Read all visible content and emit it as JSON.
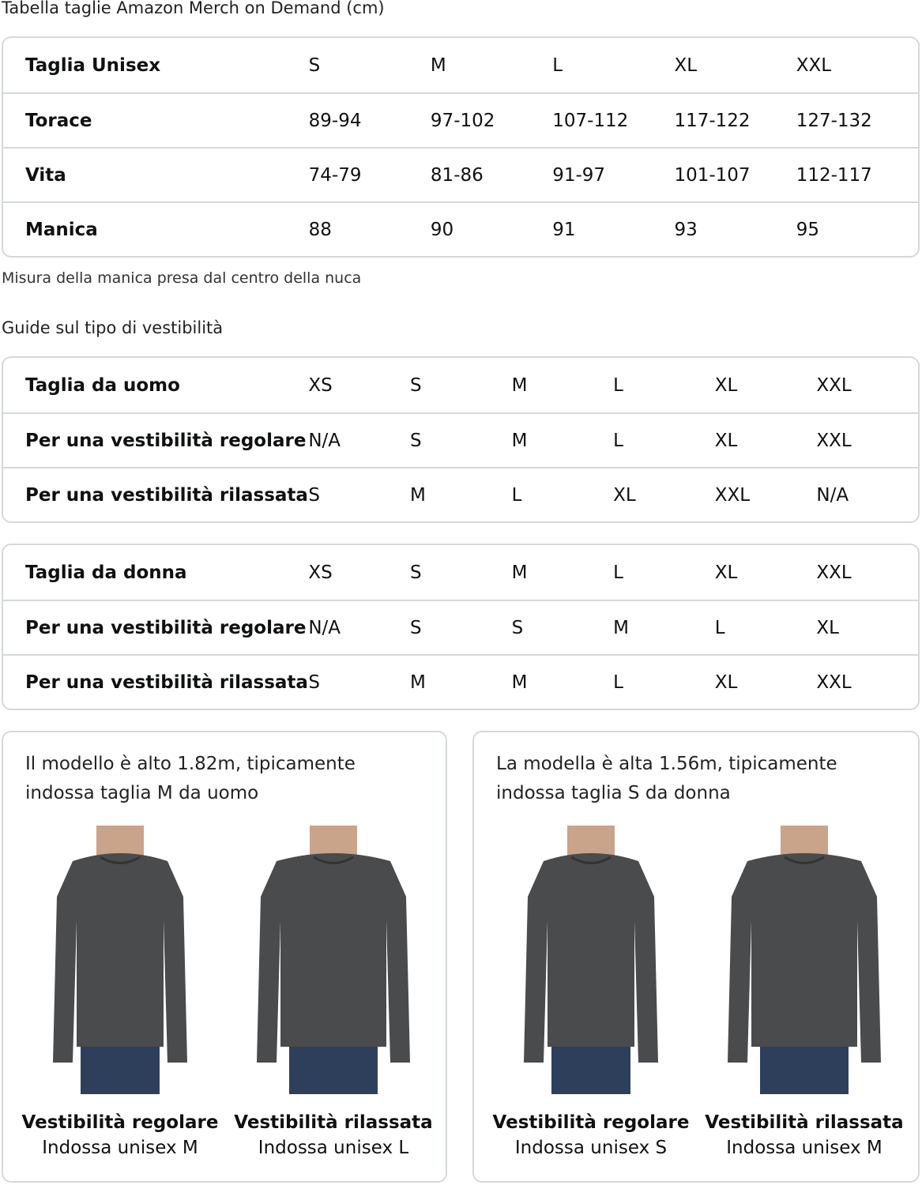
{
  "title": "Tabella taglie Amazon Merch on Demand (cm)",
  "unisex_table": {
    "rows": [
      {
        "label": "Taglia Unisex",
        "values": [
          "S",
          "M",
          "L",
          "XL",
          "XXL"
        ]
      },
      {
        "label": "Torace",
        "values": [
          "89-94",
          "97-102",
          "107-112",
          "117-122",
          "127-132"
        ]
      },
      {
        "label": "Vita",
        "values": [
          "74-79",
          "81-86",
          "91-97",
          "101-107",
          "112-117"
        ]
      },
      {
        "label": "Manica",
        "values": [
          "88",
          "90",
          "91",
          "93",
          "95"
        ]
      }
    ]
  },
  "note": "Misura della manica presa dal centro della nuca",
  "fit_title": "Guide sul tipo di vestibilità",
  "men_table": {
    "rows": [
      {
        "label": "Taglia da uomo",
        "values": [
          "XS",
          "S",
          "M",
          "L",
          "XL",
          "XXL"
        ]
      },
      {
        "label": "Per una vestibilità regolare",
        "values": [
          "N/A",
          "S",
          "M",
          "L",
          "XL",
          "XXL"
        ]
      },
      {
        "label": "Per una vestibilità rilassata",
        "values": [
          "S",
          "M",
          "L",
          "XL",
          "XXL",
          "N/A"
        ]
      }
    ]
  },
  "women_table": {
    "rows": [
      {
        "label": "Taglia da donna",
        "values": [
          "XS",
          "S",
          "M",
          "L",
          "XL",
          "XXL"
        ]
      },
      {
        "label": "Per una vestibilità regolare",
        "values": [
          "N/A",
          "S",
          "S",
          "M",
          "L",
          "XL"
        ]
      },
      {
        "label": "Per una vestibilità rilassata",
        "values": [
          "S",
          "M",
          "M",
          "L",
          "XL",
          "XXL"
        ]
      }
    ]
  },
  "cards": [
    {
      "caption1": "Il modello è alto 1.82m, tipicamente",
      "caption2": "indossa taglia M da uomo",
      "figures": [
        {
          "fit": "Vestibilità regolare",
          "wears": "Indossa unisex M"
        },
        {
          "fit": "Vestibilità rilassata",
          "wears": "Indossa unisex L"
        }
      ]
    },
    {
      "caption1": "La modella è alta 1.56m, tipicamente",
      "caption2": "indossa taglia S da donna",
      "figures": [
        {
          "fit": "Vestibilità regolare",
          "wears": "Indossa unisex S"
        },
        {
          "fit": "Vestibilità rilassata",
          "wears": "Indossa unisex M"
        }
      ]
    }
  ],
  "colors": {
    "border": "#d5d9d9",
    "shirt": "#4a4b4d",
    "jeans": "#2e3f5c"
  }
}
